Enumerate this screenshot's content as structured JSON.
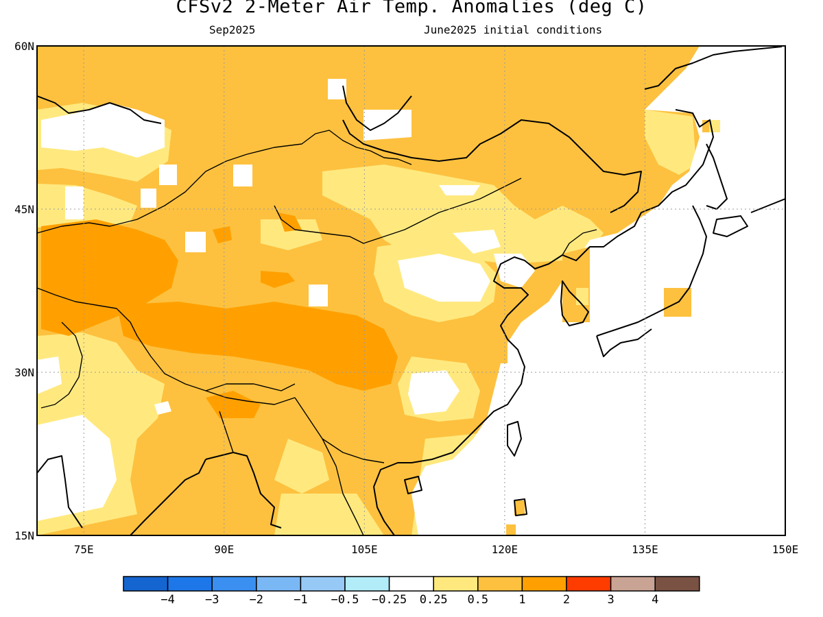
{
  "title": "CFSv2 2-Meter Air Temp. Anomalies (deg C)",
  "subtitle_left": "Sep2025",
  "subtitle_right": "June2025 initial conditions",
  "map": {
    "lon_range": [
      70,
      150
    ],
    "lat_range": [
      15,
      60
    ],
    "lat_ticks": [
      {
        "value": 60,
        "label": "60N"
      },
      {
        "value": 45,
        "label": "45N"
      },
      {
        "value": 30,
        "label": "30N"
      },
      {
        "value": 15,
        "label": "15N"
      }
    ],
    "lon_ticks": [
      {
        "value": 75,
        "label": "75E"
      },
      {
        "value": 90,
        "label": "90E"
      },
      {
        "value": 105,
        "label": "105E"
      },
      {
        "value": 120,
        "label": "120E"
      },
      {
        "value": 135,
        "label": "135E"
      },
      {
        "value": 150,
        "label": "150E"
      }
    ],
    "grid": true,
    "colors": {
      "band_0_25_to_0_5": "#ffe97f",
      "band_0_5_to_1": "#fdc13f",
      "band_1_to_2": "#ffa000",
      "below_0_25": "#ffffff"
    }
  },
  "colorbar": {
    "colors": [
      "#1565d0",
      "#1e77e8",
      "#3a8ff0",
      "#7ab7f5",
      "#97c9f7",
      "#b2ecf9",
      "#ffffff",
      "#ffe97f",
      "#fdc13f",
      "#ffa000",
      "#ff3c00",
      "#c9a394",
      "#7a5244"
    ],
    "labels": [
      "−4",
      "−3",
      "−2",
      "−1",
      "−0.5",
      "−0.25",
      "0.25",
      "0.5",
      "1",
      "2",
      "3",
      "4"
    ]
  }
}
